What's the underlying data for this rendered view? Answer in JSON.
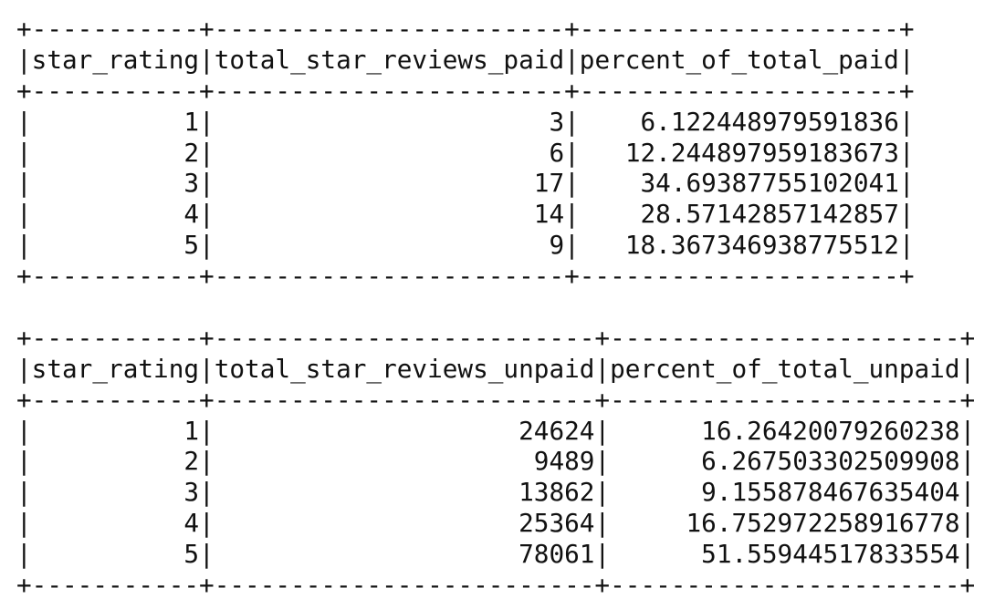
{
  "tables": [
    {
      "columns": [
        "star_rating",
        "total_star_reviews_paid",
        "percent_of_total_paid"
      ],
      "rows": [
        [
          "1",
          "3",
          "6.122448979591836"
        ],
        [
          "2",
          "6",
          "12.244897959183673"
        ],
        [
          "3",
          "17",
          "34.69387755102041"
        ],
        [
          "4",
          "14",
          "28.57142857142857"
        ],
        [
          "5",
          "9",
          "18.367346938775512"
        ]
      ]
    },
    {
      "columns": [
        "star_rating",
        "total_star_reviews_unpaid",
        "percent_of_total_unpaid"
      ],
      "rows": [
        [
          "1",
          "24624",
          "16.26420079260238"
        ],
        [
          "2",
          "9489",
          "6.267503302509908"
        ],
        [
          "3",
          "13862",
          "9.155878467635404"
        ],
        [
          "4",
          "25364",
          "16.752972258916778"
        ],
        [
          "5",
          "78061",
          "51.55944517833554"
        ]
      ]
    }
  ]
}
